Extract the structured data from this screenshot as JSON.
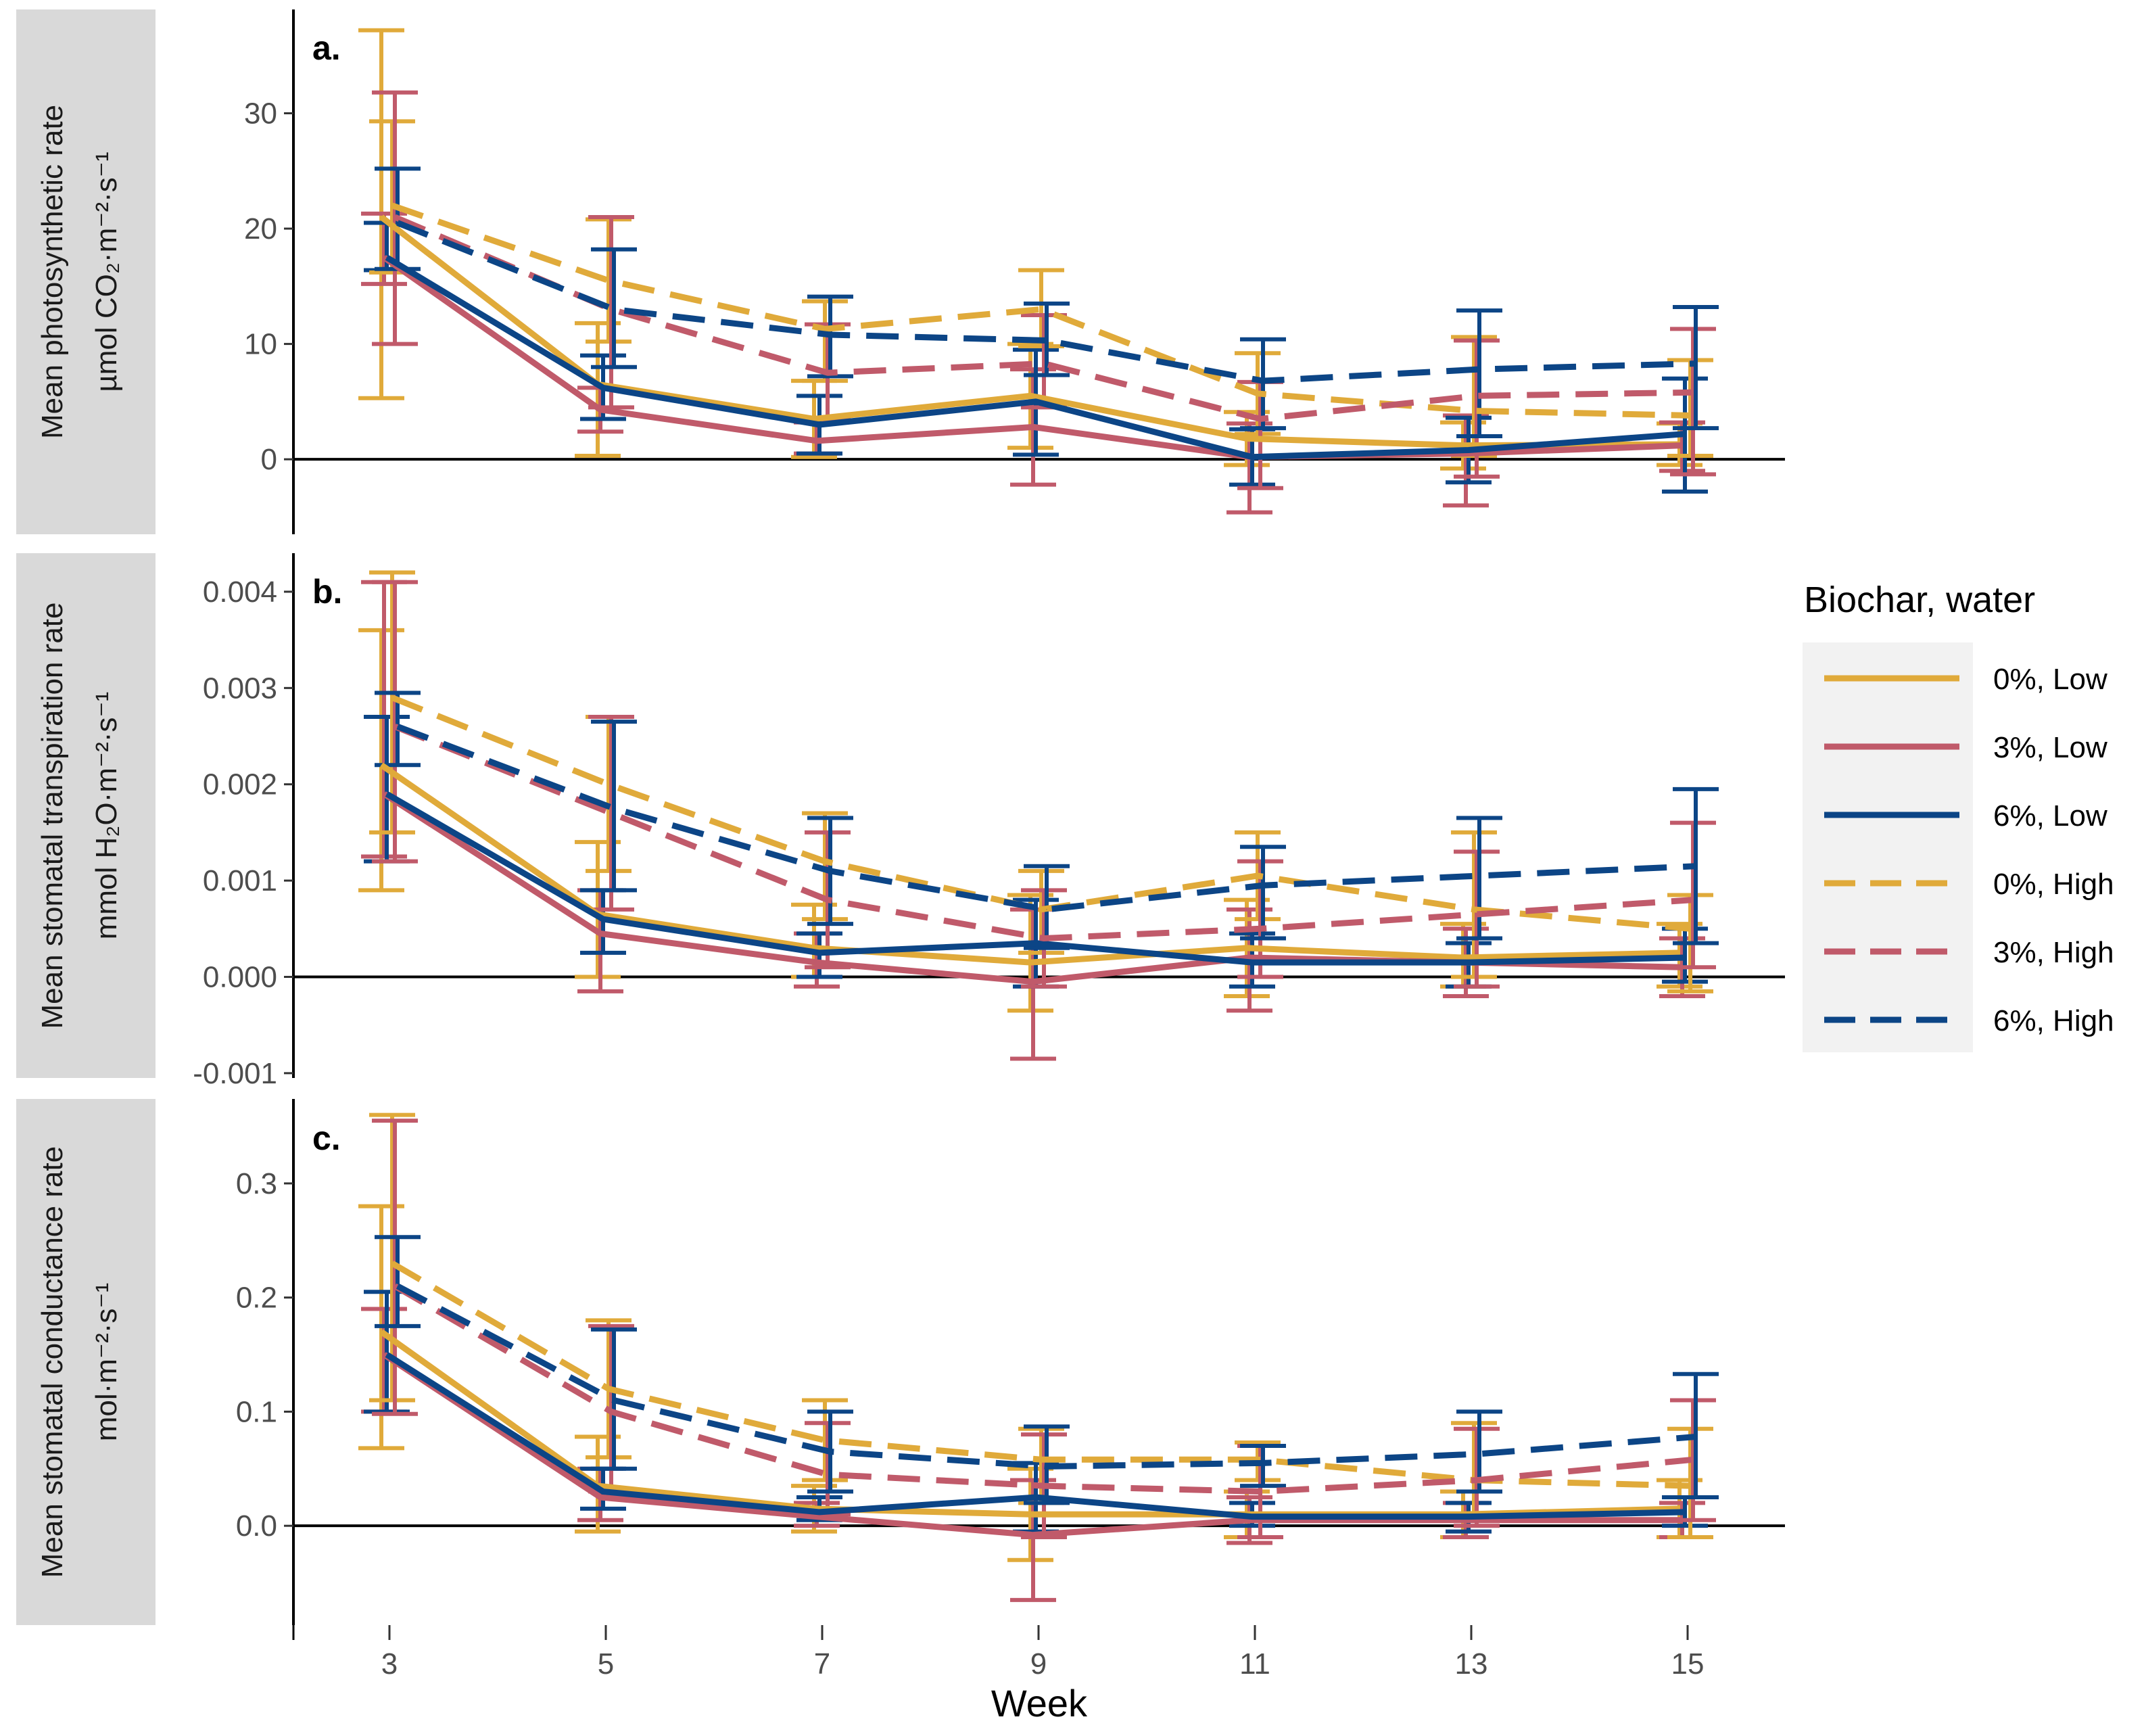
{
  "chart_data": {
    "type": "line",
    "x": [
      3,
      5,
      7,
      9,
      11,
      13,
      15
    ],
    "xlabel": "Week",
    "legend": {
      "title": "Biochar, water",
      "placement": "right",
      "entries": [
        "0%, Low",
        "3%, Low",
        "6%, Low",
        "0%, High",
        "3%, High",
        "6%, High"
      ]
    },
    "colors": {
      "0%": "#E0AA3A",
      "3%": "#C05A6A",
      "6%": "#0C4586"
    },
    "styles": {
      "Low": "solid",
      "High": "dashed"
    },
    "panels": [
      {
        "tag": "a.",
        "ylabel_line1": "Mean photosynthetic rate",
        "ylabel_line2": "µmol CO₂·m⁻²·s⁻¹",
        "ylim": [
          -6.5,
          39
        ],
        "yticks": [
          0,
          10,
          20,
          30
        ],
        "ytick_labels": [
          "0",
          "10",
          "20",
          "30"
        ],
        "series": [
          {
            "name": "0%, Low",
            "biochar": "0%",
            "water": "Low",
            "values": [
              21,
              6.5,
              3.5,
              5.5,
              1.8,
              1.2,
              1.3
            ],
            "lower": [
              5.3,
              0.3,
              0.2,
              1.0,
              -0.5,
              -0.8,
              -0.5
            ],
            "upper": [
              37.2,
              11.8,
              6.8,
              10.0,
              4.1,
              3.2,
              3.1
            ]
          },
          {
            "name": "3%, Low",
            "biochar": "3%",
            "water": "Low",
            "values": [
              17.5,
              4.3,
              1.6,
              2.8,
              0.2,
              0.5,
              1.2
            ],
            "lower": [
              15.2,
              2.4,
              0.5,
              -2.2,
              -4.6,
              -4.0,
              -1.0
            ],
            "upper": [
              21.3,
              6.2,
              3.2,
              7.8,
              3.1,
              3.8,
              3.2
            ]
          },
          {
            "name": "6%, Low",
            "biochar": "6%",
            "water": "Low",
            "values": [
              17.5,
              6.2,
              3.0,
              5.0,
              0.2,
              0.8,
              2.2
            ],
            "lower": [
              16.4,
              3.5,
              0.5,
              0.4,
              -2.2,
              -2.0,
              -2.8
            ],
            "upper": [
              20.5,
              9.0,
              5.5,
              9.5,
              2.6,
              3.6,
              7.0
            ]
          },
          {
            "name": "0%, High",
            "biochar": "0%",
            "water": "High",
            "values": [
              22,
              15.5,
              11.3,
              13.0,
              5.7,
              4.2,
              3.8
            ],
            "lower": [
              16.2,
              10.2,
              6.8,
              9.8,
              2.2,
              0.3,
              0.3
            ],
            "upper": [
              29.3,
              20.8,
              13.7,
              16.4,
              9.2,
              10.6,
              8.6
            ]
          },
          {
            "name": "3%, High",
            "biochar": "3%",
            "water": "High",
            "values": [
              21,
              13.0,
              7.5,
              8.3,
              3.5,
              5.5,
              5.8
            ],
            "lower": [
              10.0,
              4.5,
              3.5,
              4.5,
              -2.5,
              -1.5,
              -1.3
            ],
            "upper": [
              31.8,
              21.0,
              11.7,
              12.5,
              6.7,
              10.3,
              11.3
            ]
          },
          {
            "name": "6%, High",
            "biochar": "6%",
            "water": "High",
            "values": [
              20.5,
              13.0,
              10.8,
              10.3,
              6.8,
              7.8,
              8.3
            ],
            "lower": [
              16.5,
              8.0,
              7.2,
              7.3,
              2.7,
              2.0,
              2.7
            ],
            "upper": [
              25.2,
              18.2,
              14.1,
              13.5,
              10.4,
              12.9,
              13.2
            ]
          }
        ]
      },
      {
        "tag": "b.",
        "ylabel_line1": "Mean stomatal transpiration rate",
        "ylabel_line2": "mmol H₂O·m⁻²·s⁻¹",
        "ylim": [
          -0.00105,
          0.0044
        ],
        "yticks": [
          -0.001,
          0.0,
          0.001,
          0.002,
          0.003,
          0.004
        ],
        "ytick_labels": [
          "-0.001",
          "0.000",
          "0.001",
          "0.002",
          "0.003",
          "0.004"
        ],
        "series": [
          {
            "name": "0%, Low",
            "biochar": "0%",
            "water": "Low",
            "values": [
              0.0022,
              0.00065,
              0.0003,
              0.00015,
              0.0003,
              0.0002,
              0.00025
            ],
            "lower": [
              0.0009,
              0.0,
              0.0,
              -0.00035,
              -0.0002,
              -0.0001,
              -0.0001
            ],
            "upper": [
              0.0036,
              0.0014,
              0.00075,
              0.00085,
              0.0008,
              0.00055,
              0.00055
            ]
          },
          {
            "name": "3%, Low",
            "biochar": "3%",
            "water": "Low",
            "values": [
              0.0019,
              0.00045,
              0.00015,
              -5e-05,
              0.0002,
              0.00015,
              0.0001
            ],
            "lower": [
              0.00125,
              -0.00015,
              -0.0001,
              -0.00085,
              -0.00035,
              -0.0002,
              -0.0002
            ],
            "upper": [
              0.0041,
              0.0009,
              0.00045,
              0.0007,
              0.0007,
              0.0005,
              0.0004
            ]
          },
          {
            "name": "6%, Low",
            "biochar": "6%",
            "water": "Low",
            "values": [
              0.0019,
              0.0006,
              0.00025,
              0.00035,
              0.00015,
              0.00015,
              0.0002
            ],
            "lower": [
              0.0012,
              0.00025,
              0.0,
              -0.0001,
              -0.0001,
              -0.0001,
              -5e-05
            ],
            "upper": [
              0.0027,
              0.0009,
              0.00045,
              0.0008,
              0.00045,
              0.00035,
              0.0005
            ]
          },
          {
            "name": "0%, High",
            "biochar": "0%",
            "water": "High",
            "values": [
              0.0029,
              0.002,
              0.0012,
              0.0007,
              0.00105,
              0.0007,
              0.0005
            ],
            "lower": [
              0.0015,
              0.0011,
              0.0006,
              0.00025,
              0.0006,
              0.0,
              -0.00015
            ],
            "upper": [
              0.0042,
              0.0027,
              0.0017,
              0.0011,
              0.0015,
              0.0015,
              0.00085
            ]
          },
          {
            "name": "3%, High",
            "biochar": "3%",
            "water": "High",
            "values": [
              0.0026,
              0.0017,
              0.0008,
              0.0004,
              0.0005,
              0.00065,
              0.0008
            ],
            "lower": [
              0.0012,
              0.0007,
              0.0001,
              -0.0001,
              0.0,
              -0.0001,
              0.0001
            ],
            "upper": [
              0.0041,
              0.0027,
              0.0015,
              0.0009,
              0.0012,
              0.0013,
              0.0016
            ]
          },
          {
            "name": "6%, High",
            "biochar": "6%",
            "water": "High",
            "values": [
              0.0026,
              0.00175,
              0.0011,
              0.0007,
              0.00095,
              0.00105,
              0.00115
            ],
            "lower": [
              0.0022,
              0.0009,
              0.00055,
              0.0003,
              0.0004,
              0.0004,
              0.00035
            ],
            "upper": [
              0.00295,
              0.00265,
              0.00165,
              0.00115,
              0.00135,
              0.00165,
              0.00195
            ]
          }
        ]
      },
      {
        "tag": "c.",
        "ylabel_line1": "Mean stomatal conductance rate",
        "ylabel_line2": "mol·m⁻²·s⁻¹",
        "ylim": [
          -0.087,
          0.374
        ],
        "yticks": [
          0.0,
          0.1,
          0.2,
          0.3
        ],
        "ytick_labels": [
          "0.0",
          "0.1",
          "0.2",
          "0.3"
        ],
        "series": [
          {
            "name": "0%, Low",
            "biochar": "0%",
            "water": "Low",
            "values": [
              0.17,
              0.035,
              0.015,
              0.01,
              0.01,
              0.01,
              0.015
            ],
            "lower": [
              0.068,
              -0.005,
              -0.005,
              -0.03,
              -0.01,
              -0.01,
              -0.01
            ],
            "upper": [
              0.28,
              0.078,
              0.035,
              0.05,
              0.03,
              0.03,
              0.04
            ]
          },
          {
            "name": "3%, Low",
            "biochar": "3%",
            "water": "Low",
            "values": [
              0.15,
              0.025,
              0.008,
              -0.008,
              0.005,
              0.005,
              0.005
            ],
            "lower": [
              0.1,
              0.005,
              0.0,
              -0.065,
              -0.015,
              -0.01,
              -0.01
            ],
            "upper": [
              0.19,
              0.05,
              0.02,
              0.04,
              0.025,
              0.02,
              0.02
            ]
          },
          {
            "name": "6%, Low",
            "biochar": "6%",
            "water": "Low",
            "values": [
              0.15,
              0.03,
              0.012,
              0.025,
              0.008,
              0.008,
              0.012
            ],
            "lower": [
              0.1,
              0.015,
              0.005,
              -0.005,
              0.0,
              -0.005,
              0.0
            ],
            "upper": [
              0.205,
              0.05,
              0.025,
              0.055,
              0.02,
              0.02,
              0.025
            ]
          },
          {
            "name": "0%, High",
            "biochar": "0%",
            "water": "High",
            "values": [
              0.23,
              0.12,
              0.075,
              0.058,
              0.058,
              0.04,
              0.035
            ],
            "lower": [
              0.11,
              0.06,
              0.04,
              0.02,
              0.04,
              0.01,
              -0.01
            ],
            "upper": [
              0.36,
              0.18,
              0.11,
              0.085,
              0.073,
              0.09,
              0.085
            ]
          },
          {
            "name": "3%, High",
            "biochar": "3%",
            "water": "High",
            "values": [
              0.21,
              0.1,
              0.045,
              0.035,
              0.03,
              0.04,
              0.058
            ],
            "lower": [
              0.098,
              0.03,
              0.01,
              -0.01,
              -0.01,
              0.0,
              0.005
            ],
            "upper": [
              0.355,
              0.175,
              0.09,
              0.08,
              0.07,
              0.085,
              0.11
            ]
          },
          {
            "name": "6%, High",
            "biochar": "6%",
            "water": "High",
            "values": [
              0.21,
              0.11,
              0.065,
              0.052,
              0.055,
              0.063,
              0.078
            ],
            "lower": [
              0.175,
              0.05,
              0.03,
              0.02,
              0.035,
              0.03,
              0.025
            ],
            "upper": [
              0.253,
              0.172,
              0.1,
              0.087,
              0.07,
              0.1,
              0.133
            ]
          }
        ]
      }
    ]
  }
}
